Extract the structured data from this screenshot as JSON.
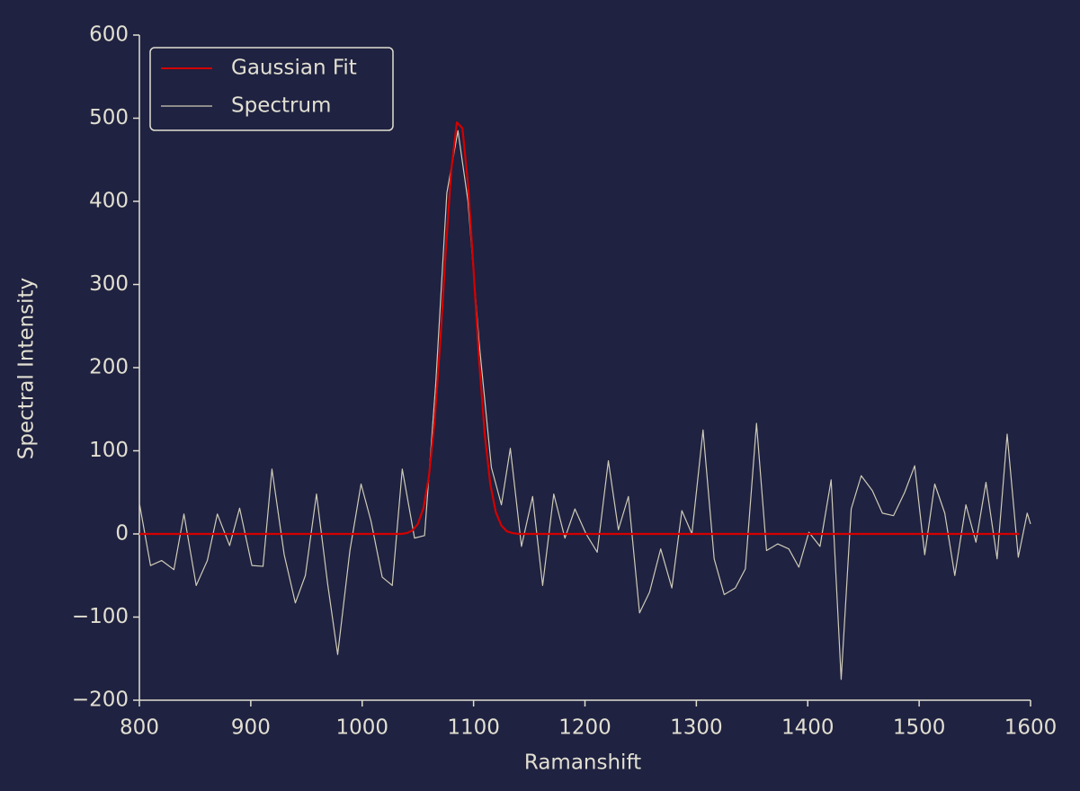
{
  "chart_data": {
    "type": "line",
    "xlabel": "Ramanshift",
    "ylabel": "Spectral Intensity",
    "xlim": [
      800,
      1600
    ],
    "xticks": [
      800,
      900,
      1000,
      1100,
      1200,
      1300,
      1400,
      1500,
      1600
    ],
    "ylim": [
      -200,
      600
    ],
    "yticks": [
      {
        "value": -200,
        "label": "−200"
      },
      {
        "value": -100,
        "label": "−100"
      },
      0,
      100,
      200,
      300,
      400,
      500,
      600
    ],
    "legend": "upper left",
    "series": [
      {
        "name": "Gaussian Fit",
        "color": "#d40000",
        "x": [
          800,
          1035,
          1040,
          1045,
          1050,
          1055,
          1060,
          1065,
          1070,
          1075,
          1080,
          1085,
          1090,
          1095,
          1100,
          1105,
          1110,
          1115,
          1120,
          1125,
          1130,
          1135,
          1140,
          1590
        ],
        "values": [
          0,
          0,
          1,
          4,
          12,
          31,
          70,
          135,
          229,
          339,
          438,
          495,
          488,
          421,
          317,
          208,
          120,
          60,
          26,
          10,
          3,
          1,
          0,
          0
        ]
      },
      {
        "name": "Spectrum",
        "color": "#cfcbb8",
        "x": [
          800,
          810,
          820,
          831,
          840,
          851,
          861,
          870,
          881,
          890,
          901,
          911,
          919,
          930,
          940,
          949,
          959,
          969,
          978,
          989,
          999,
          1008,
          1018,
          1027,
          1036,
          1047,
          1056,
          1066,
          1076,
          1086,
          1095,
          1105,
          1116,
          1125,
          1133,
          1143,
          1153,
          1162,
          1172,
          1182,
          1191,
          1201,
          1211,
          1221,
          1230,
          1239,
          1249,
          1258,
          1268,
          1278,
          1287,
          1296,
          1306,
          1316,
          1325,
          1335,
          1344,
          1354,
          1363,
          1373,
          1383,
          1392,
          1401,
          1411,
          1421,
          1430,
          1439,
          1448,
          1458,
          1467,
          1477,
          1487,
          1496,
          1505,
          1514,
          1523,
          1532,
          1542,
          1551,
          1560,
          1570,
          1579,
          1589,
          1597,
          1600
        ],
        "values": [
          37,
          -38,
          -32,
          -43,
          24,
          -62,
          -32,
          24,
          -14,
          31,
          -38,
          -39,
          78,
          -25,
          -83,
          -50,
          48,
          -60,
          -145,
          -20,
          60,
          15,
          -52,
          -62,
          78,
          -5,
          -2,
          180,
          410,
          485,
          400,
          230,
          80,
          35,
          103,
          -15,
          45,
          -62,
          48,
          -5,
          30,
          0,
          -22,
          88,
          5,
          45,
          -95,
          -70,
          -18,
          -65,
          28,
          0,
          125,
          -30,
          -73,
          -65,
          -42,
          133,
          -20,
          -12,
          -18,
          -40,
          2,
          -15,
          65,
          -175,
          30,
          70,
          52,
          25,
          22,
          50,
          82,
          -25,
          60,
          25,
          -50,
          35,
          -10,
          62,
          -30,
          120,
          -28,
          25,
          12
        ]
      }
    ]
  }
}
